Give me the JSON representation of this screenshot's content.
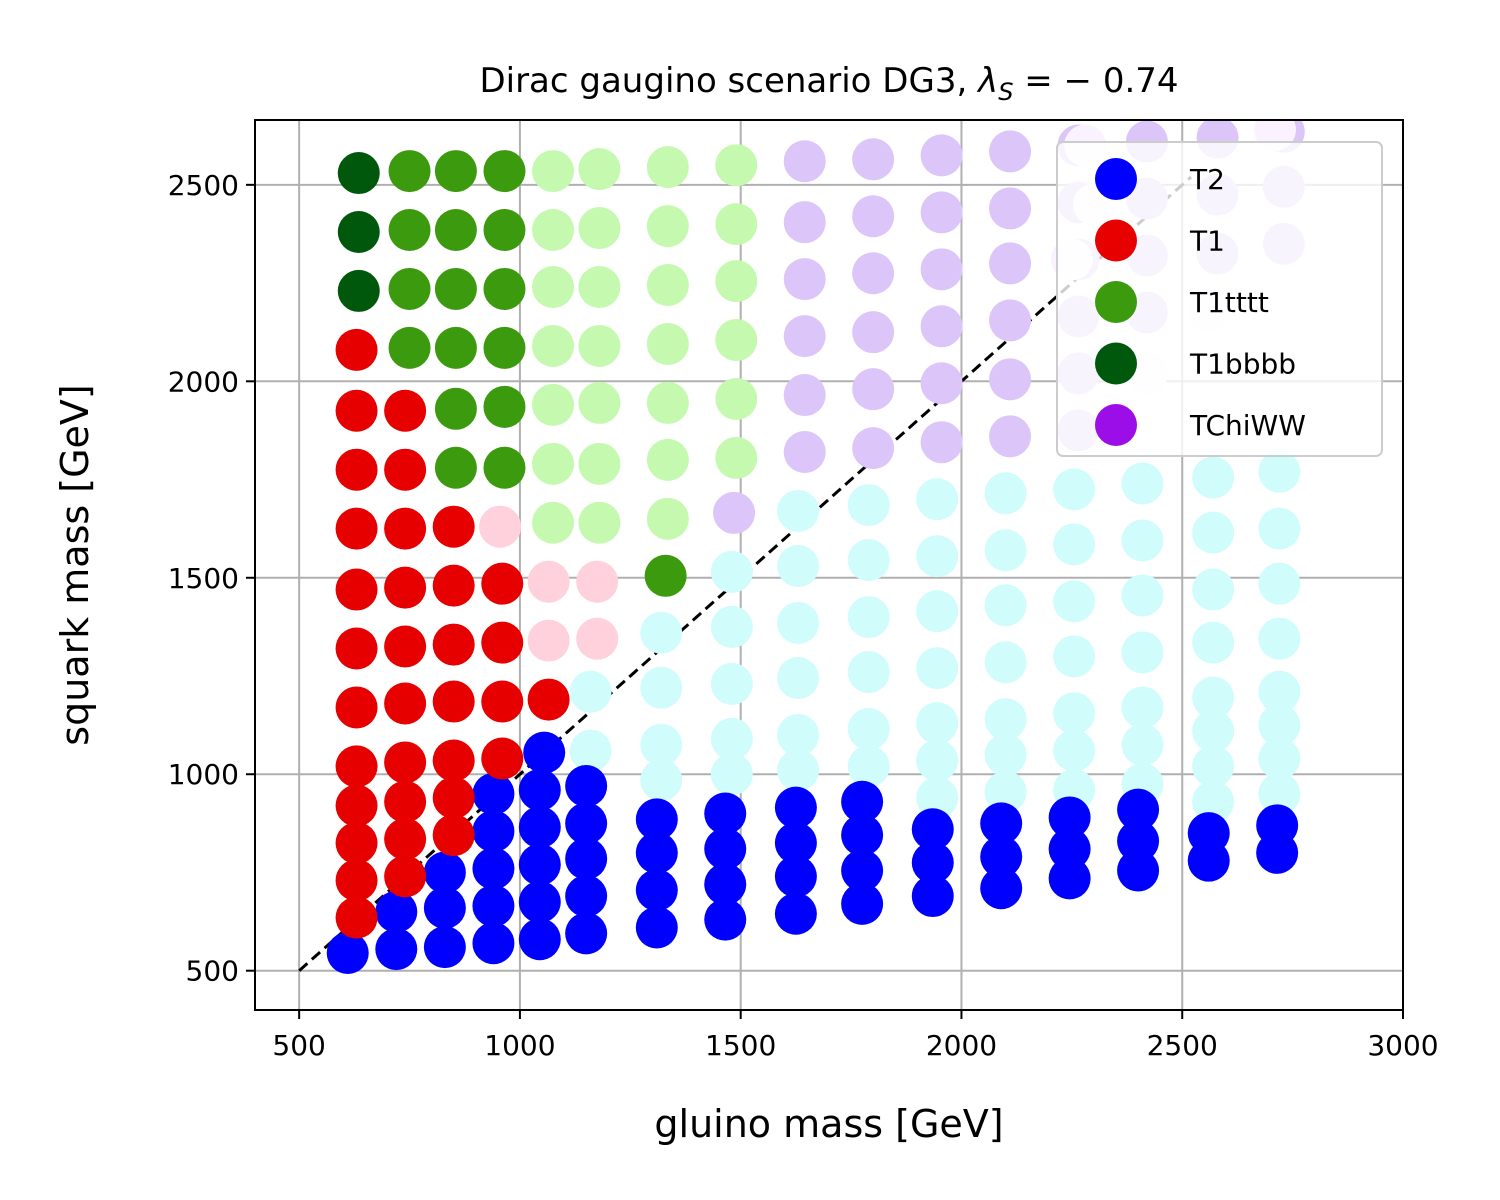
{
  "chart_data": {
    "type": "scatter",
    "title_main": "Dirac gaugino scenario DG3, ",
    "title_symbol": "λ",
    "title_subscript": "S",
    "title_value": " = − 0.74",
    "xlabel": "gluino mass [GeV]",
    "ylabel": "squark mass [GeV]",
    "xlim": [
      400,
      3000
    ],
    "ylim": [
      400,
      2665
    ],
    "xticks": [
      "500",
      "1000",
      "1500",
      "2000",
      "2500",
      "3000"
    ],
    "yticks": [
      "500",
      "1000",
      "1500",
      "2000",
      "2500"
    ],
    "grid": true,
    "legend_position": "top-right",
    "diagonal_line": {
      "from": [
        500,
        500
      ],
      "to": [
        2520,
        2520
      ],
      "style": "dashed",
      "color": "#000000"
    },
    "series": [
      {
        "name": "T2",
        "color": "#0000ff",
        "points": [
          [
            610,
            545
          ],
          [
            720,
            555
          ],
          [
            830,
            560
          ],
          [
            940,
            570
          ],
          [
            1045,
            580
          ],
          [
            1150,
            595
          ],
          [
            1310,
            610
          ],
          [
            1465,
            630
          ],
          [
            1625,
            645
          ],
          [
            1775,
            670
          ],
          [
            1935,
            690
          ],
          [
            2090,
            710
          ],
          [
            2245,
            735
          ],
          [
            2400,
            755
          ],
          [
            2560,
            780
          ],
          [
            2715,
            800
          ],
          [
            720,
            650
          ],
          [
            830,
            660
          ],
          [
            940,
            665
          ],
          [
            1045,
            675
          ],
          [
            1150,
            690
          ],
          [
            1310,
            705
          ],
          [
            1465,
            720
          ],
          [
            1625,
            740
          ],
          [
            1775,
            755
          ],
          [
            1935,
            775
          ],
          [
            2090,
            790
          ],
          [
            2245,
            810
          ],
          [
            2400,
            830
          ],
          [
            2560,
            850
          ],
          [
            2715,
            870
          ],
          [
            830,
            750
          ],
          [
            940,
            760
          ],
          [
            1045,
            770
          ],
          [
            1150,
            785
          ],
          [
            1310,
            800
          ],
          [
            1465,
            810
          ],
          [
            1625,
            825
          ],
          [
            1775,
            845
          ],
          [
            1935,
            860
          ],
          [
            2090,
            875
          ],
          [
            2245,
            890
          ],
          [
            2400,
            910
          ],
          [
            940,
            855
          ],
          [
            1045,
            865
          ],
          [
            1150,
            875
          ],
          [
            1310,
            885
          ],
          [
            1465,
            900
          ],
          [
            1625,
            915
          ],
          [
            1775,
            930
          ],
          [
            940,
            950
          ],
          [
            1045,
            960
          ],
          [
            1150,
            970
          ],
          [
            1055,
            1055
          ]
        ]
      },
      {
        "name": "T1",
        "color": "#e60000",
        "points": [
          [
            630,
            635
          ],
          [
            630,
            730
          ],
          [
            630,
            825
          ],
          [
            630,
            920
          ],
          [
            630,
            1020
          ],
          [
            630,
            1170
          ],
          [
            630,
            1320
          ],
          [
            630,
            1470
          ],
          [
            630,
            1625
          ],
          [
            630,
            1775
          ],
          [
            630,
            1925
          ],
          [
            630,
            2080
          ],
          [
            740,
            740
          ],
          [
            740,
            835
          ],
          [
            740,
            930
          ],
          [
            740,
            1030
          ],
          [
            740,
            1180
          ],
          [
            740,
            1325
          ],
          [
            740,
            1475
          ],
          [
            740,
            1625
          ],
          [
            740,
            1775
          ],
          [
            740,
            1925
          ],
          [
            850,
            845
          ],
          [
            850,
            940
          ],
          [
            850,
            1035
          ],
          [
            850,
            1185
          ],
          [
            850,
            1330
          ],
          [
            850,
            1480
          ],
          [
            850,
            1630
          ],
          [
            960,
            1040
          ],
          [
            960,
            1185
          ],
          [
            960,
            1335
          ],
          [
            960,
            1485
          ],
          [
            1065,
            1190
          ]
        ]
      },
      {
        "name": "T1tttt",
        "color": "#3b9a0e",
        "points": [
          [
            750,
            2085
          ],
          [
            750,
            2235
          ],
          [
            750,
            2385
          ],
          [
            750,
            2535
          ],
          [
            855,
            1780
          ],
          [
            855,
            1930
          ],
          [
            855,
            2085
          ],
          [
            855,
            2235
          ],
          [
            855,
            2385
          ],
          [
            855,
            2535
          ],
          [
            965,
            1780
          ],
          [
            965,
            1935
          ],
          [
            965,
            2085
          ],
          [
            965,
            2235
          ],
          [
            965,
            2385
          ],
          [
            965,
            2535
          ],
          [
            1330,
            1505
          ]
        ]
      },
      {
        "name": "T1bbbb",
        "color": "#00580c",
        "points": [
          [
            635,
            2230
          ],
          [
            635,
            2380
          ],
          [
            635,
            2530
          ]
        ]
      },
      {
        "name": "TChiWW",
        "color": "#9b0ee8",
        "points": []
      }
    ],
    "background_points": [
      {
        "color": "#c5f9b0",
        "points": [
          [
            1075,
            1640
          ],
          [
            1075,
            1790
          ],
          [
            1075,
            1940
          ],
          [
            1075,
            2090
          ],
          [
            1075,
            2240
          ],
          [
            1075,
            2385
          ],
          [
            1075,
            2535
          ],
          [
            1180,
            1640
          ],
          [
            1180,
            1790
          ],
          [
            1180,
            1945
          ],
          [
            1180,
            2090
          ],
          [
            1180,
            2240
          ],
          [
            1180,
            2390
          ],
          [
            1180,
            2540
          ],
          [
            1335,
            1650
          ],
          [
            1335,
            1800
          ],
          [
            1335,
            1945
          ],
          [
            1335,
            2095
          ],
          [
            1335,
            2245
          ],
          [
            1335,
            2395
          ],
          [
            1335,
            2545
          ],
          [
            1490,
            1805
          ],
          [
            1490,
            1955
          ],
          [
            1490,
            2105
          ],
          [
            1490,
            2255
          ],
          [
            1490,
            2400
          ],
          [
            1490,
            2550
          ]
        ]
      },
      {
        "name_ref": "TChiWW-faded",
        "color": "#dcc5f9",
        "points": [
          [
            1485,
            1665
          ],
          [
            1645,
            1820
          ],
          [
            1645,
            1965
          ],
          [
            1645,
            2115
          ],
          [
            1645,
            2260
          ],
          [
            1645,
            2405
          ],
          [
            1645,
            2560
          ],
          [
            1800,
            1830
          ],
          [
            1800,
            1980
          ],
          [
            1800,
            2125
          ],
          [
            1800,
            2275
          ],
          [
            1800,
            2420
          ],
          [
            1800,
            2565
          ],
          [
            1955,
            1845
          ],
          [
            1955,
            1995
          ],
          [
            1955,
            2140
          ],
          [
            1955,
            2285
          ],
          [
            1955,
            2430
          ],
          [
            1955,
            2575
          ],
          [
            2110,
            1860
          ],
          [
            2110,
            2005
          ],
          [
            2110,
            2155
          ],
          [
            2110,
            2300
          ],
          [
            2110,
            2440
          ],
          [
            2110,
            2585
          ],
          [
            2265,
            1875
          ],
          [
            2265,
            2020
          ],
          [
            2265,
            2165
          ],
          [
            2265,
            2310
          ],
          [
            2265,
            2455
          ],
          [
            2265,
            2600
          ],
          [
            2420,
            2175
          ],
          [
            2420,
            2320
          ],
          [
            2420,
            2465
          ],
          [
            2420,
            2610
          ],
          [
            2580,
            2325
          ],
          [
            2580,
            2475
          ],
          [
            2580,
            2620
          ],
          [
            2730,
            2350
          ],
          [
            2730,
            2495
          ],
          [
            2730,
            2635
          ]
        ]
      },
      {
        "color": "#faf3ff",
        "points": [
          [
            2280,
            2600
          ],
          [
            2300,
            2450
          ],
          [
            2250,
            2310
          ],
          [
            2420,
            2020
          ],
          [
            2560,
            2180
          ],
          [
            2710,
            2640
          ]
        ]
      },
      {
        "color": "#ffd1dc",
        "points": [
          [
            955,
            1630
          ],
          [
            1065,
            1490
          ],
          [
            1175,
            1490
          ],
          [
            1065,
            1340
          ],
          [
            1175,
            1345
          ]
        ]
      },
      {
        "color": "#d0fcfc",
        "points": [
          [
            1160,
            1060
          ],
          [
            1160,
            1210
          ],
          [
            1320,
            985
          ],
          [
            1320,
            1075
          ],
          [
            1320,
            1220
          ],
          [
            1320,
            1360
          ],
          [
            1480,
            1000
          ],
          [
            1480,
            1090
          ],
          [
            1480,
            1230
          ],
          [
            1480,
            1375
          ],
          [
            1480,
            1515
          ],
          [
            1630,
            1010
          ],
          [
            1630,
            1100
          ],
          [
            1630,
            1245
          ],
          [
            1630,
            1385
          ],
          [
            1630,
            1530
          ],
          [
            1630,
            1670
          ],
          [
            1790,
            1020
          ],
          [
            1790,
            1115
          ],
          [
            1790,
            1260
          ],
          [
            1790,
            1400
          ],
          [
            1790,
            1545
          ],
          [
            1790,
            1685
          ],
          [
            1945,
            940
          ],
          [
            1945,
            1035
          ],
          [
            1945,
            1130
          ],
          [
            1945,
            1270
          ],
          [
            1945,
            1415
          ],
          [
            1945,
            1555
          ],
          [
            1945,
            1700
          ],
          [
            2100,
            955
          ],
          [
            2100,
            1050
          ],
          [
            2100,
            1140
          ],
          [
            2100,
            1285
          ],
          [
            2100,
            1430
          ],
          [
            2100,
            1570
          ],
          [
            2100,
            1715
          ],
          [
            2255,
            960
          ],
          [
            2255,
            1060
          ],
          [
            2255,
            1155
          ],
          [
            2255,
            1300
          ],
          [
            2255,
            1440
          ],
          [
            2255,
            1585
          ],
          [
            2255,
            1725
          ],
          [
            2410,
            975
          ],
          [
            2410,
            1075
          ],
          [
            2410,
            1170
          ],
          [
            2410,
            1310
          ],
          [
            2410,
            1455
          ],
          [
            2410,
            1595
          ],
          [
            2410,
            1740
          ],
          [
            2570,
            930
          ],
          [
            2570,
            1020
          ],
          [
            2570,
            1110
          ],
          [
            2570,
            1195
          ],
          [
            2570,
            1335
          ],
          [
            2570,
            1470
          ],
          [
            2570,
            1615
          ],
          [
            2570,
            1755
          ],
          [
            2720,
            950
          ],
          [
            2720,
            1040
          ],
          [
            2720,
            1125
          ],
          [
            2720,
            1210
          ],
          [
            2720,
            1345
          ],
          [
            2720,
            1485
          ],
          [
            2720,
            1625
          ],
          [
            2720,
            1770
          ]
        ]
      }
    ]
  }
}
